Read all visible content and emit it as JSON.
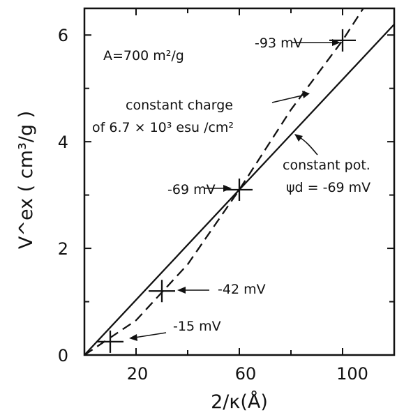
{
  "chart_data": {
    "type": "line",
    "xlabel": "2/κ(Å)",
    "ylabel": "V^ex ( cm³/g )",
    "xlim": [
      0,
      120
    ],
    "ylim": [
      0,
      6.5
    ],
    "x_ticks": [
      "20",
      "60",
      "100"
    ],
    "y_ticks": [
      "0",
      "2",
      "4",
      "6"
    ],
    "grid": false,
    "series": [
      {
        "name": "constant pot.",
        "style": "solid",
        "x": [
          0,
          120
        ],
        "y": [
          0,
          6.2
        ]
      },
      {
        "name": "constant charge",
        "style": "dashed",
        "x": [
          0,
          20,
          40,
          60,
          80,
          100,
          108
        ],
        "y": [
          0,
          0.65,
          1.7,
          3.1,
          4.6,
          5.9,
          6.5
        ]
      }
    ],
    "points": [
      {
        "x": 10,
        "y": 0.25,
        "label": "-15 mV"
      },
      {
        "x": 30,
        "y": 1.2,
        "label": "-42 mV"
      },
      {
        "x": 60,
        "y": 3.1,
        "label": "-69 mV"
      },
      {
        "x": 100,
        "y": 5.9,
        "label": "-93 mV"
      }
    ],
    "annotations": {
      "area": "A=700 m²/g",
      "charge_line1": "constant charge",
      "charge_line2": "of 6.7 × 10³ esu /cm²",
      "pot_line1": "constant pot.",
      "pot_line2": "ψd = -69 mV"
    }
  }
}
